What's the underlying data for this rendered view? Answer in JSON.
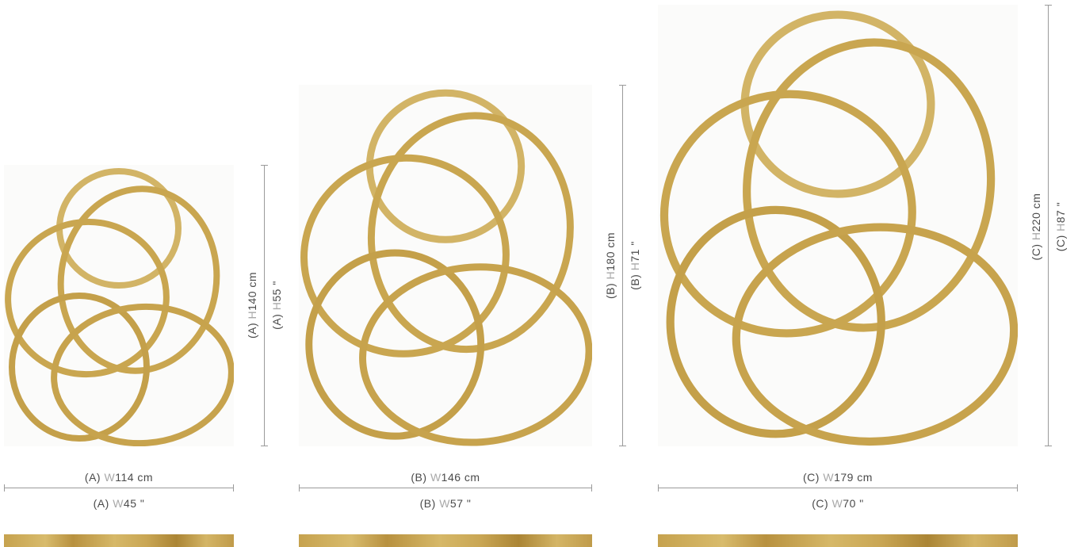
{
  "sizes": [
    {
      "id": "A",
      "width": {
        "prefix": "(A) ",
        "key": "W",
        "cm": "114 cm",
        "in": "45 \""
      },
      "height": {
        "prefix": "(A) ",
        "key": "H",
        "cm": "140 cm",
        "in": "55 \""
      }
    },
    {
      "id": "B",
      "width": {
        "prefix": "(B) ",
        "key": "W",
        "cm": "146 cm",
        "in": "57 \""
      },
      "height": {
        "prefix": "(B) ",
        "key": "H",
        "cm": "180 cm",
        "in": "71 \""
      }
    },
    {
      "id": "C",
      "width": {
        "prefix": "(C) ",
        "key": "W",
        "cm": "179 cm",
        "in": "70 \""
      },
      "height": {
        "prefix": "(C) ",
        "key": "H",
        "cm": "220 cm",
        "in": "87 \""
      }
    }
  ],
  "colors": {
    "ring_gold": "#c9a650",
    "ring_light": "#dcc27a",
    "dimension_line": "#9a9a9a",
    "label_text": "#4a4a4a",
    "label_key": "#a8a8a8"
  },
  "icons": [
    "ring-artwork"
  ]
}
